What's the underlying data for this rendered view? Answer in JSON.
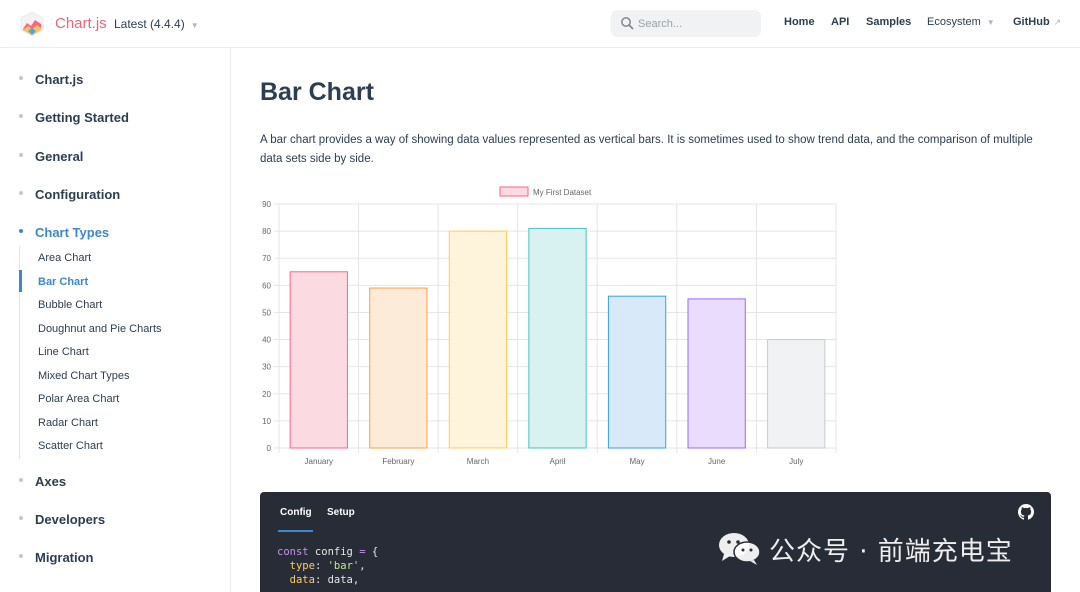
{
  "header": {
    "brand": "Chart.js",
    "version": "Latest (4.4.4)",
    "search_placeholder": "Search...",
    "nav": [
      "Home",
      "API",
      "Samples",
      "Ecosystem",
      "GitHub"
    ]
  },
  "sidebar": {
    "sections": [
      "Chart.js",
      "Getting Started",
      "General",
      "Configuration",
      "Chart Types",
      "Axes",
      "Developers",
      "Migration"
    ],
    "active_section": "Chart Types",
    "chart_types": [
      "Area Chart",
      "Bar Chart",
      "Bubble Chart",
      "Doughnut and Pie Charts",
      "Line Chart",
      "Mixed Chart Types",
      "Polar Area Chart",
      "Radar Chart",
      "Scatter Chart"
    ],
    "active_item": "Bar Chart"
  },
  "main": {
    "title": "Bar Chart",
    "description": "A bar chart provides a way of showing data values represented as vertical bars. It is sometimes used to show trend data, and the comparison of multiple data sets side by side."
  },
  "chart_data": {
    "type": "bar",
    "categories": [
      "January",
      "February",
      "March",
      "April",
      "May",
      "June",
      "July"
    ],
    "series": [
      {
        "name": "My First Dataset",
        "values": [
          65,
          59,
          80,
          81,
          56,
          55,
          40
        ],
        "fill_colors": [
          "#fbdbe1",
          "#fdebd9",
          "#fef4db",
          "#d8f1f1",
          "#d8e9f9",
          "#e9dcfd",
          "#f1f2f3"
        ],
        "border_colors": [
          "#ff6384",
          "#ff9f40",
          "#ffcd56",
          "#4bc0c0",
          "#36a2eb",
          "#9966ff",
          "#c9cbcf"
        ]
      }
    ],
    "yticks": [
      0,
      10,
      20,
      30,
      40,
      50,
      60,
      70,
      80,
      90
    ],
    "ylim": [
      0,
      90
    ],
    "grid": true,
    "legend": "top-center"
  },
  "code_panel": {
    "tabs": [
      "Config",
      "Setup"
    ],
    "active_tab": "Config",
    "lines": [
      "const config = {",
      "  type: 'bar',",
      "  data: data,"
    ]
  },
  "watermark": {
    "text": "公众号 · 前端充电宝"
  },
  "icons": {
    "logo": "chartjs-logo-icon",
    "search": "search-icon",
    "github": "github-icon",
    "external": "external-link-icon",
    "watermark": "wechat-icon"
  },
  "colors": {
    "brand": "#e5677f",
    "accent": "#3e87c8",
    "code_bg": "#272c36"
  }
}
